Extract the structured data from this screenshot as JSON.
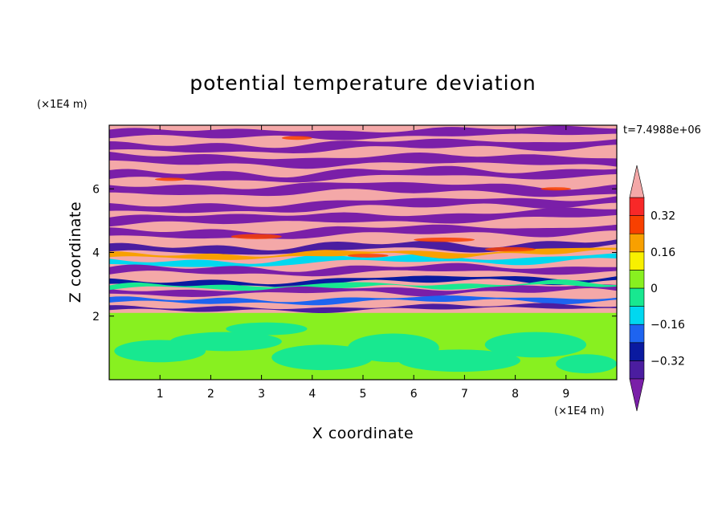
{
  "chart_data": {
    "type": "heatmap",
    "title": "potential temperature deviation",
    "xlabel": "X coordinate",
    "ylabel": "Z coordinate",
    "x_unit": "(×1E4 m)",
    "y_unit": "(×1E4 m)",
    "time_label": "t=7.4988e+06",
    "xlim": [
      0,
      10
    ],
    "ylim": [
      0,
      8
    ],
    "xticks": [
      1,
      2,
      3,
      4,
      5,
      6,
      7,
      8,
      9
    ],
    "yticks": [
      2,
      4,
      6
    ],
    "colorbar": {
      "levels": [
        -0.4,
        -0.32,
        -0.24,
        -0.16,
        -0.08,
        0,
        0.08,
        0.16,
        0.24,
        0.32,
        0.4
      ],
      "tick_labels": [
        "0.32",
        "0.16",
        "0",
        "−0.16",
        "−0.32"
      ],
      "tick_values": [
        0.32,
        0.16,
        0,
        -0.16,
        -0.32
      ],
      "extend": "both",
      "colors": [
        "#7a1fa8",
        "#4b1da0",
        "#0a1aa0",
        "#1e64f0",
        "#00d8f0",
        "#18e890",
        "#88f020",
        "#f8f000",
        "#f8a000",
        "#f84000",
        "#f82828",
        "#f4a8a8"
      ]
    },
    "field_description_bands": [
      {
        "z_range": [
          0,
          2.1
        ],
        "dominant_value": 0.02
      },
      {
        "z_range": [
          2.1,
          4.5
        ],
        "dominant_value": "mixed"
      },
      {
        "z_range": [
          4.5,
          8
        ],
        "dominant_value": "alternating ±0.4"
      }
    ]
  }
}
